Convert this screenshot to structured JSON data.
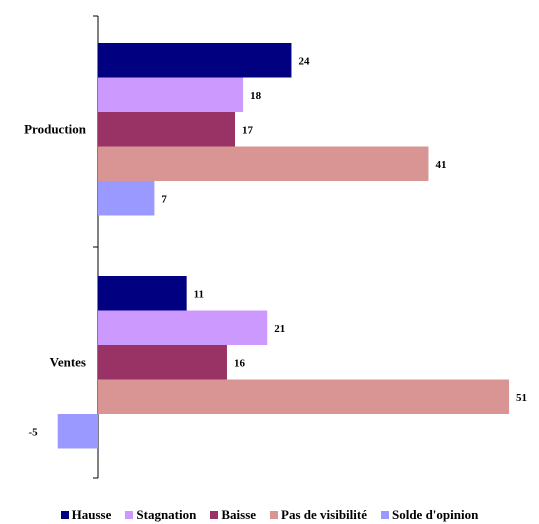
{
  "chart_data": {
    "type": "bar",
    "orientation": "horizontal",
    "categories": [
      "Production",
      "Ventes"
    ],
    "series": [
      {
        "name": "Hausse",
        "color": "#000080",
        "values": [
          24,
          11
        ]
      },
      {
        "name": "Stagnation",
        "color": "#cc99ff",
        "values": [
          18,
          21
        ]
      },
      {
        "name": "Baisse",
        "color": "#993366",
        "values": [
          17,
          16
        ]
      },
      {
        "name": "Pas de visibilité",
        "color": "#d99594",
        "values": [
          41,
          51
        ]
      },
      {
        "name": "Solde d'opinion",
        "color": "#9999ff",
        "values": [
          7,
          -5
        ]
      }
    ],
    "legend_position": "bottom",
    "grid": false,
    "xlim": [
      -5,
      51
    ]
  }
}
